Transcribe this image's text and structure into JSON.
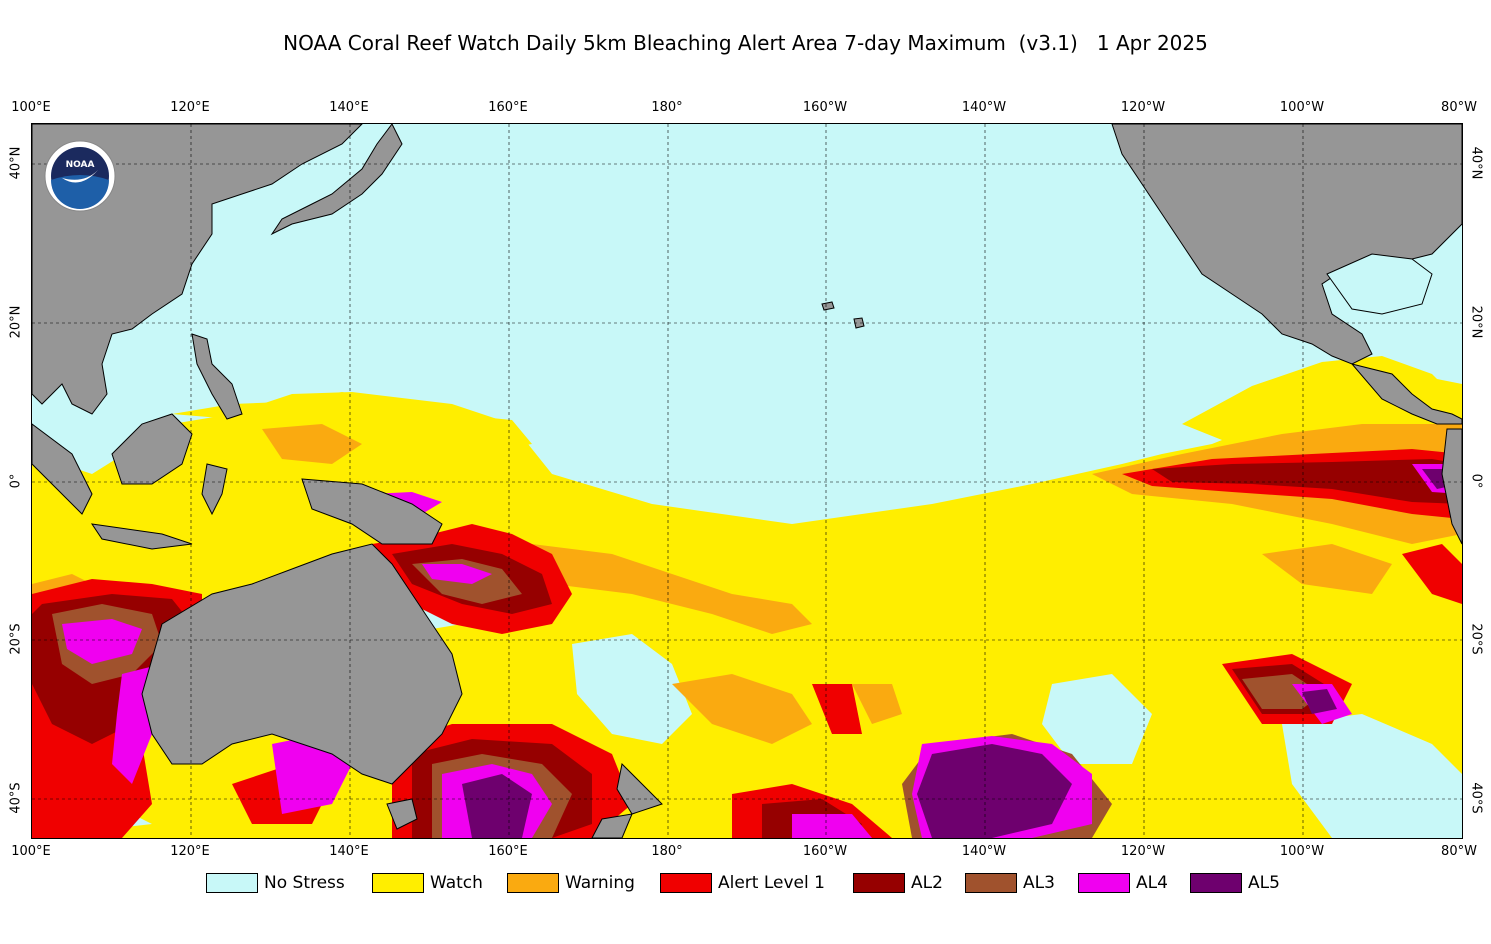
{
  "title": "NOAA Coral Reef Watch Daily 5km Bleaching Alert Area 7-day Maximum  (v3.1)   1 Apr 2025",
  "longitude_labels": [
    "100°E",
    "120°E",
    "140°E",
    "160°E",
    "180°",
    "160°W",
    "140°W",
    "120°W",
    "100°W",
    "80°W"
  ],
  "latitude_labels": [
    "40°N",
    "20°N",
    "0°",
    "20°S",
    "40°S"
  ],
  "logo_text": "NOAA",
  "legend": [
    {
      "label": "No Stress",
      "color": "#c8f8f8"
    },
    {
      "label": "Watch",
      "color": "#ffee00"
    },
    {
      "label": "Warning",
      "color": "#faaa10"
    },
    {
      "label": "Alert Level 1",
      "color": "#f00000"
    },
    {
      "label": "AL2",
      "color": "#960000"
    },
    {
      "label": "AL3",
      "color": "#a0522d"
    },
    {
      "label": "AL4",
      "color": "#f000f0"
    },
    {
      "label": "AL5",
      "color": "#6e006e"
    }
  ],
  "colors": {
    "land": "#969696",
    "ocean_no_stress": "#c8f8f8",
    "grid": "#000000",
    "logo_blue": "#1e5fa8",
    "logo_navy": "#1b2a5e"
  }
}
